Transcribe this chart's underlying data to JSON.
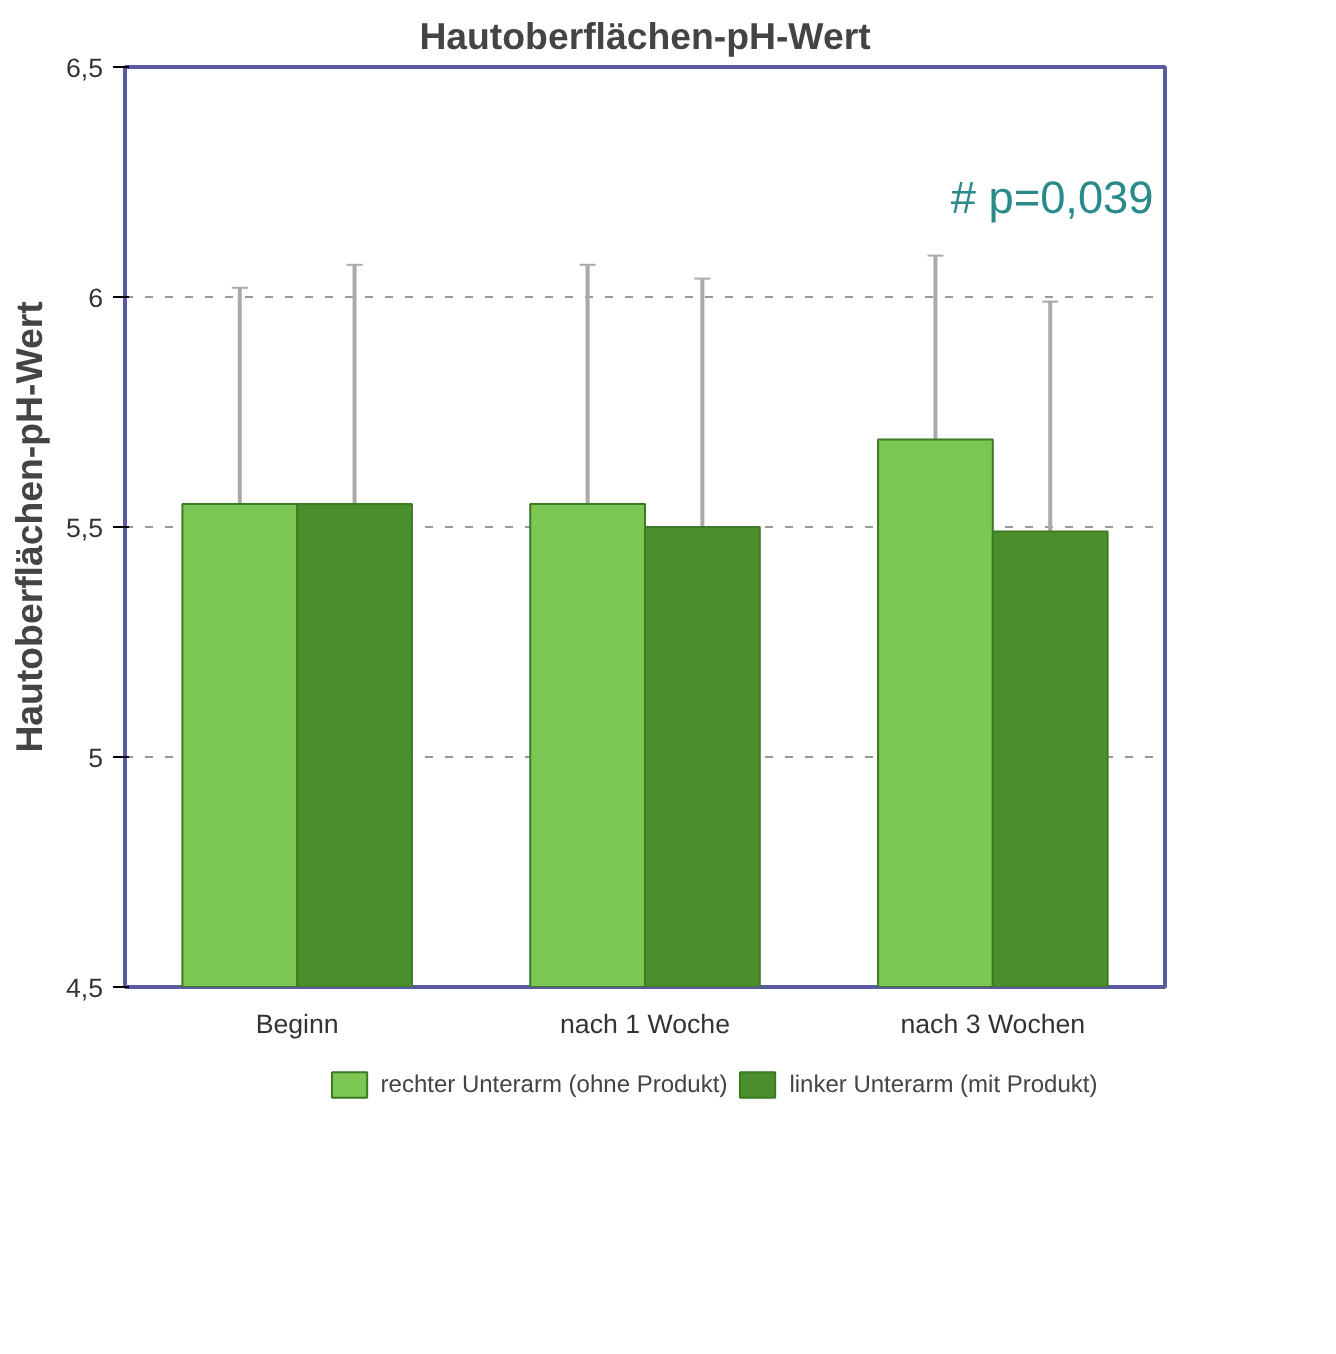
{
  "chart_data": {
    "type": "bar",
    "title": "Hautoberflächen-pH-Wert",
    "ylabel": "Hautoberflächen-pH-Wert",
    "categories": [
      "Beginn",
      "nach 1 Woche",
      "nach 3 Wochen"
    ],
    "series": [
      {
        "name": "rechter Unterarm (ohne Produkt)",
        "color": "#7cc654",
        "values": [
          5.55,
          5.55,
          5.69
        ],
        "errors": [
          [
            5.55,
            6.02
          ],
          [
            5.55,
            6.07
          ],
          [
            5.69,
            6.09
          ]
        ]
      },
      {
        "name": "linker Unterarm (mit Produkt)",
        "color": "#4a8f2c",
        "values": [
          5.55,
          5.5,
          5.49
        ],
        "errors": [
          [
            5.55,
            6.07
          ],
          [
            5.5,
            6.04
          ],
          [
            5.49,
            5.99
          ]
        ]
      }
    ],
    "ylim": [
      4.5,
      6.5
    ],
    "yticks": [
      {
        "value": 4.5,
        "label": "4,5"
      },
      5,
      {
        "value": 5.5,
        "label": "5,5"
      },
      6,
      {
        "value": 6.5,
        "label": "6,5"
      }
    ],
    "grid": "y",
    "legend": "bottom",
    "annotations": [
      "# p=0,039"
    ]
  }
}
